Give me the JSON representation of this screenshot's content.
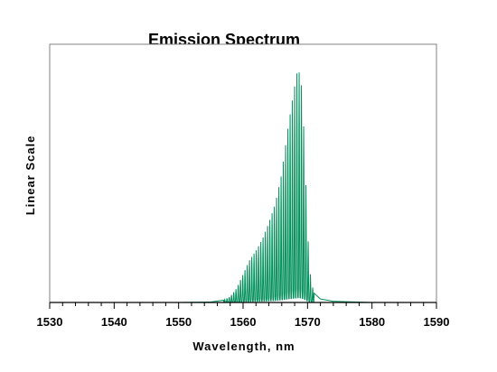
{
  "chart_data": {
    "type": "line",
    "title": "Emission Spectrum",
    "xlabel": "Wavelength, nm",
    "ylabel": "Linear Scale",
    "xlim": [
      1530,
      1590
    ],
    "ylim": [
      0,
      1.1
    ],
    "xticks": [
      "1530",
      "1540",
      "1550",
      "1560",
      "1570",
      "1580",
      "1590"
    ],
    "grid": false,
    "legend": "none",
    "series_color": "#008f5a",
    "series": [
      {
        "x": [
          1540,
          1550,
          1555,
          1557,
          1558,
          1559,
          1560,
          1561,
          1562,
          1563,
          1564,
          1565,
          1566,
          1567,
          1568,
          1568.5,
          1569,
          1569.5,
          1570,
          1570.5,
          1571,
          1572,
          1574,
          1580,
          1585
        ],
        "y": [
          0.0,
          0.0,
          0.002,
          0.01,
          0.025,
          0.06,
          0.12,
          0.18,
          0.22,
          0.27,
          0.34,
          0.42,
          0.55,
          0.75,
          0.92,
          1.0,
          0.95,
          0.7,
          0.3,
          0.1,
          0.04,
          0.015,
          0.005,
          0.0,
          0.0
        ],
        "modulation": "dense fine fringes (approx. 0.35 nm period), full-depth, within 1557–1571 nm"
      }
    ]
  }
}
